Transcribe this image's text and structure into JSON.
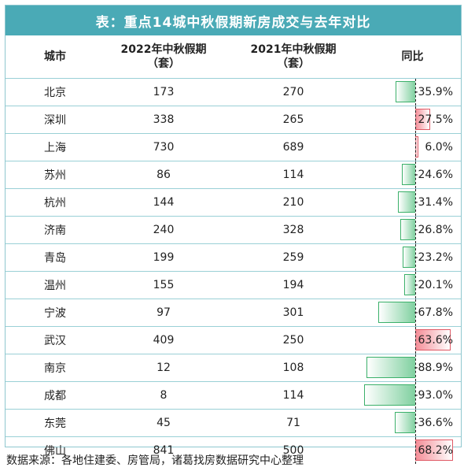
{
  "title": "表：重点14城中秋假期新房成交与去年对比",
  "header": {
    "city": "城市",
    "y2022_line1": "2022年中秋假期",
    "y2022_line2": "（套）",
    "y2021_line1": "2021年中秋假期",
    "y2021_line2": "（套）",
    "ratio": "同比"
  },
  "rows": [
    {
      "city": "北京",
      "y2022": "173",
      "y2021": "270",
      "ratio": "-35.9%"
    },
    {
      "city": "深圳",
      "y2022": "338",
      "y2021": "265",
      "ratio": "27.5%"
    },
    {
      "city": "上海",
      "y2022": "730",
      "y2021": "689",
      "ratio": "6.0%"
    },
    {
      "city": "苏州",
      "y2022": "86",
      "y2021": "114",
      "ratio": "-24.6%"
    },
    {
      "city": "杭州",
      "y2022": "144",
      "y2021": "210",
      "ratio": "-31.4%"
    },
    {
      "city": "济南",
      "y2022": "240",
      "y2021": "328",
      "ratio": "-26.8%"
    },
    {
      "city": "青岛",
      "y2022": "199",
      "y2021": "259",
      "ratio": "-23.2%"
    },
    {
      "city": "温州",
      "y2022": "155",
      "y2021": "194",
      "ratio": "-20.1%"
    },
    {
      "city": "宁波",
      "y2022": "97",
      "y2021": "301",
      "ratio": "-67.8%"
    },
    {
      "city": "武汉",
      "y2022": "409",
      "y2021": "250",
      "ratio": "63.6%"
    },
    {
      "city": "南京",
      "y2022": "12",
      "y2021": "108",
      "ratio": "-88.9%"
    },
    {
      "city": "成都",
      "y2022": "8",
      "y2021": "114",
      "ratio": "-93.0%"
    },
    {
      "city": "东莞",
      "y2022": "45",
      "y2021": "71",
      "ratio": "-36.6%"
    },
    {
      "city": "佛山",
      "y2022": "841",
      "y2021": "500",
      "ratio": "68.2%"
    }
  ],
  "colors": {
    "header": "#4aaab6",
    "negative_bar": "#7fd09f",
    "positive_bar": "#f48b95"
  },
  "source": "数据来源：各地住建委、房管局，诸葛找房数据研究中心整理"
}
